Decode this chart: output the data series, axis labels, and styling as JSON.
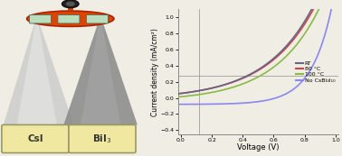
{
  "title": "",
  "ylabel": "Current density (mA/cm²)",
  "xlabel": "Voltage (V)",
  "legend": [
    "RT",
    "80 °C",
    "100 °C",
    "No CsBi₃I₁₀"
  ],
  "rt_color": "#666688",
  "c80_color": "#cc4444",
  "c100_color": "#88bb44",
  "no_color": "#8888ee",
  "background_color": "#f0ede5",
  "plot_bg": "#f0ede5",
  "grid_color": "#999999"
}
